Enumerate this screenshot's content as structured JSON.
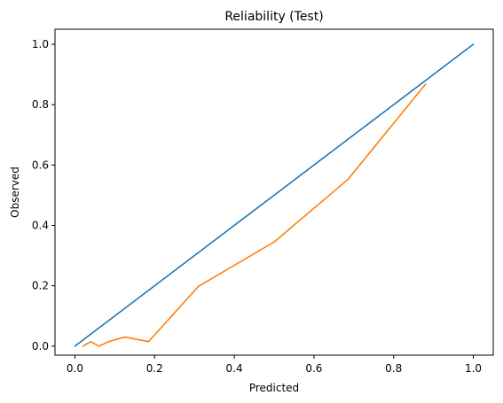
{
  "chart_data": {
    "type": "line",
    "title": "Reliability (Test)",
    "xlabel": "Predicted",
    "ylabel": "Observed",
    "xlim": [
      -0.05,
      1.05
    ],
    "ylim": [
      -0.03,
      1.05
    ],
    "xticks": [
      0.0,
      0.2,
      0.4,
      0.6,
      0.8,
      1.0
    ],
    "xtick_labels": [
      "0.0",
      "0.2",
      "0.4",
      "0.6",
      "0.8",
      "1.0"
    ],
    "yticks": [
      0.0,
      0.2,
      0.4,
      0.6,
      0.8,
      1.0
    ],
    "ytick_labels": [
      "0.0",
      "0.2",
      "0.4",
      "0.6",
      "0.8",
      "1.0"
    ],
    "grid": false,
    "series": [
      {
        "color": "#1f77b4",
        "x": [
          0.0,
          1.0
        ],
        "y": [
          0.0,
          1.0
        ]
      },
      {
        "color": "#ff7f0e",
        "x": [
          0.02,
          0.04,
          0.06,
          0.085,
          0.125,
          0.185,
          0.31,
          0.5,
          0.685,
          0.88
        ],
        "y": [
          0.0,
          0.015,
          0.0,
          0.015,
          0.03,
          0.015,
          0.198,
          0.345,
          0.552,
          0.868
        ]
      }
    ]
  }
}
